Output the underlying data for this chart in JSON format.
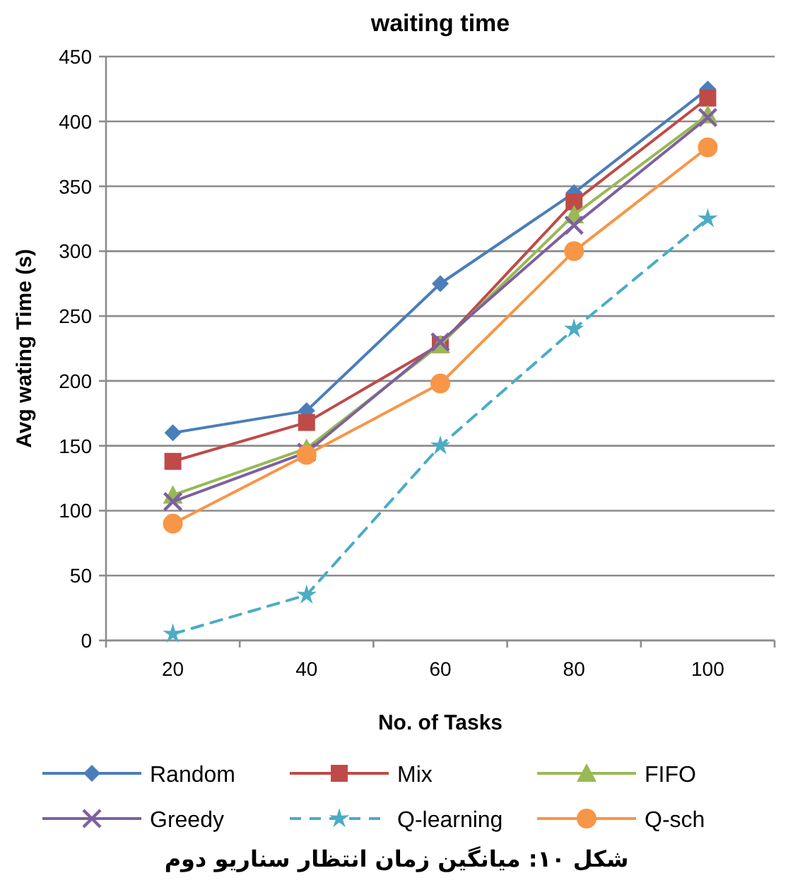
{
  "chart_data": {
    "type": "line",
    "title": "waiting time",
    "xlabel": "No. of Tasks",
    "ylabel": "Avg wating Time  (s)",
    "categories": [
      "20",
      "40",
      "60",
      "80",
      "100"
    ],
    "ylim": [
      0,
      450
    ],
    "yticks": [
      0,
      50,
      100,
      150,
      200,
      250,
      300,
      350,
      400,
      450
    ],
    "grid": "y",
    "legend": "bottom",
    "series": [
      {
        "name": "Random",
        "color": "#4a7ebb",
        "marker": "diamond",
        "line_style": "solid",
        "values": [
          160,
          177,
          275,
          345,
          425
        ]
      },
      {
        "name": "Mix",
        "color": "#be4b48",
        "marker": "square",
        "line_style": "solid",
        "values": [
          138,
          168,
          228,
          338,
          418
        ]
      },
      {
        "name": "FIFO",
        "color": "#98b954",
        "marker": "triangle",
        "line_style": "solid",
        "values": [
          112,
          148,
          228,
          328,
          405
        ]
      },
      {
        "name": "Greedy",
        "color": "#7d60a0",
        "marker": "cross",
        "line_style": "solid",
        "values": [
          107,
          145,
          230,
          320,
          403
        ]
      },
      {
        "name": "Q-learning",
        "color": "#4bacc6",
        "marker": "star",
        "line_style": "dashed",
        "values": [
          5,
          35,
          150,
          240,
          325
        ]
      },
      {
        "name": "Q-sch",
        "color": "#f79646",
        "marker": "circle",
        "line_style": "solid",
        "values": [
          90,
          143,
          198,
          300,
          380
        ]
      }
    ],
    "annotations": [
      "شکل ۱۰: میانگین زمان انتظار سناریو دوم"
    ]
  }
}
